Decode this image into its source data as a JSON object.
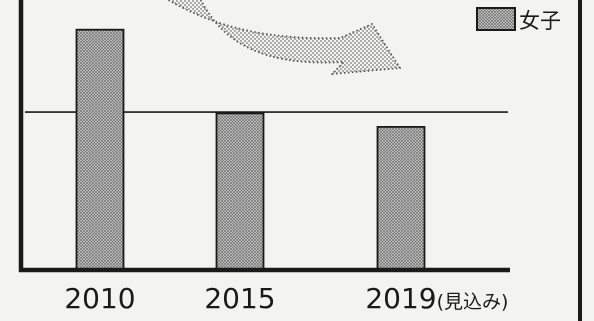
{
  "chart_data": {
    "type": "bar",
    "categories": [
      "2010",
      "2015",
      "2019(見込み)"
    ],
    "series": [
      {
        "name": "女子",
        "values": [
          89,
          58,
          53
        ]
      }
    ],
    "ylim": [
      0,
      100
    ],
    "reference_line": 58.5,
    "grid": false,
    "legend": "top-right"
  },
  "colors": {
    "background": "#f3f3f1",
    "ink": "#1a1a1a",
    "hatch_fill": "#d2d2d2",
    "hatch_line": "#6e6e6e",
    "arrow_dots": "#707070",
    "arrow_outline": "#555555"
  }
}
